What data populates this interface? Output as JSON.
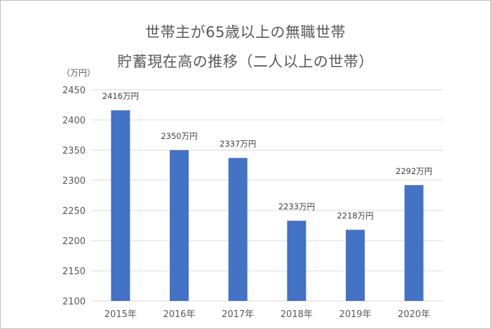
{
  "chart_data": {
    "type": "bar",
    "title_line1": "世帯主が65歳以上の無職世帯",
    "title_line2": "貯蓄現在高の推移（二人以上の世帯）",
    "y_unit_label": "（万円）",
    "categories": [
      "2015年",
      "2016年",
      "2017年",
      "2018年",
      "2019年",
      "2020年"
    ],
    "values": [
      2416,
      2350,
      2337,
      2233,
      2218,
      2292
    ],
    "data_labels": [
      "2416万円",
      "2350万円",
      "2337万円",
      "2233万円",
      "2218万円",
      "2292万円"
    ],
    "ylim": [
      2100,
      2450
    ],
    "yticks": [
      "2100",
      "2150",
      "2200",
      "2250",
      "2300",
      "2350",
      "2400",
      "2450"
    ],
    "grid": true,
    "bar_color": "#4472c4",
    "grid_color": "#d9d9d9"
  }
}
